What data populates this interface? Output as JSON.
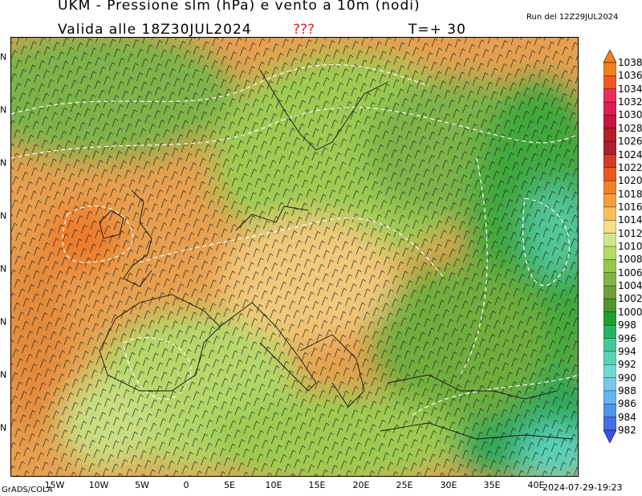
{
  "header": {
    "title": "UKM - Pressione slm (hPa) e vento a 10m (nodi)",
    "valid": "Valida alle 18Z30JUL2024",
    "flag": "???",
    "step": "T=+ 30",
    "run": "Run del 12Z29JUL2024"
  },
  "footer": {
    "software": "GrADS/COLA",
    "timestamp": "2024-07-29-19:23"
  },
  "map": {
    "lon_labels": [
      "15W",
      "10W",
      "5W",
      "0",
      "5E",
      "10E",
      "15E",
      "20E",
      "25E",
      "30E",
      "35E",
      "40E"
    ],
    "lat_labels": [
      "N",
      "N",
      "N",
      "N",
      "N",
      "N",
      "N",
      "N"
    ]
  },
  "colorbar": {
    "labels": [
      "1038",
      "1036",
      "1034",
      "1032",
      "1030",
      "1028",
      "1026",
      "1024",
      "1022",
      "1020",
      "1018",
      "1016",
      "1014",
      "1012",
      "1010",
      "1008",
      "1006",
      "1004",
      "1002",
      "1000",
      "998",
      "996",
      "994",
      "992",
      "990",
      "988",
      "986",
      "984",
      "982"
    ],
    "colors": [
      "#f08020",
      "#f05a1e",
      "#e8305a",
      "#dc1e50",
      "#c81440",
      "#b41e28",
      "#aa2030",
      "#d23c28",
      "#e65a1e",
      "#f08228",
      "#f4a040",
      "#f6c060",
      "#f6dc8c",
      "#d2e68c",
      "#b4dc64",
      "#96c850",
      "#82b446",
      "#6ea03c",
      "#50962d",
      "#1ea02d",
      "#28b464",
      "#46c896",
      "#5ad2b4",
      "#6edcd2",
      "#78c8e6",
      "#64b4f0",
      "#5096e6",
      "#466ee6"
    ]
  }
}
